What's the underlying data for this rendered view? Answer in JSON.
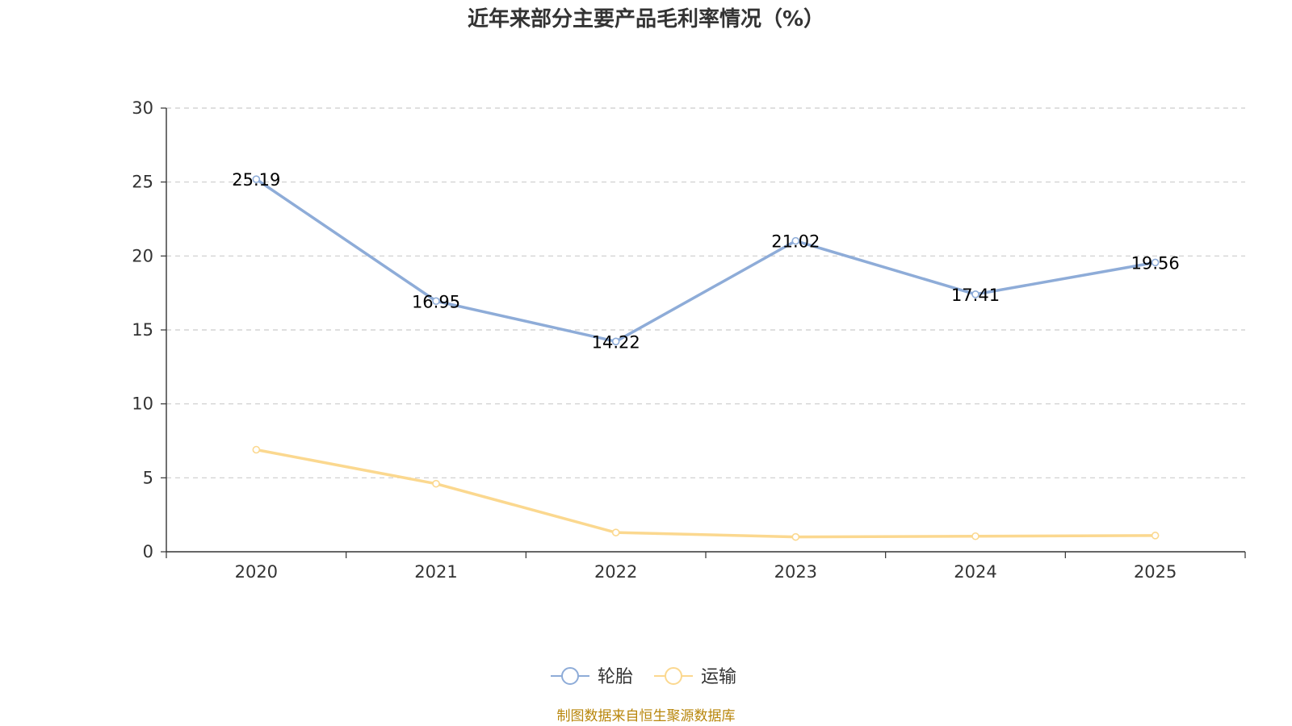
{
  "chart_data": {
    "type": "line",
    "title": "近年来部分主要产品毛利率情况（%）",
    "categories": [
      "2020",
      "2021",
      "2022",
      "2023",
      "2024",
      "2025"
    ],
    "series": [
      {
        "name": "轮胎",
        "values": [
          25.19,
          16.95,
          14.22,
          21.02,
          17.41,
          19.56
        ],
        "labels": [
          "25.19",
          "16.95",
          "14.22",
          "21.02",
          "17.41",
          "19.56"
        ],
        "color": "#8eacd8"
      },
      {
        "name": "运输",
        "values": [
          6.9,
          4.6,
          1.3,
          1.0,
          1.05,
          1.1
        ],
        "color": "#fbd88f"
      }
    ],
    "ylim": [
      0,
      30
    ],
    "yticks": [
      "0",
      "5",
      "10",
      "15",
      "20",
      "25",
      "30"
    ],
    "grid": true,
    "legend_position": "bottom-center"
  },
  "source_text": "制图数据来自恒生聚源数据库"
}
